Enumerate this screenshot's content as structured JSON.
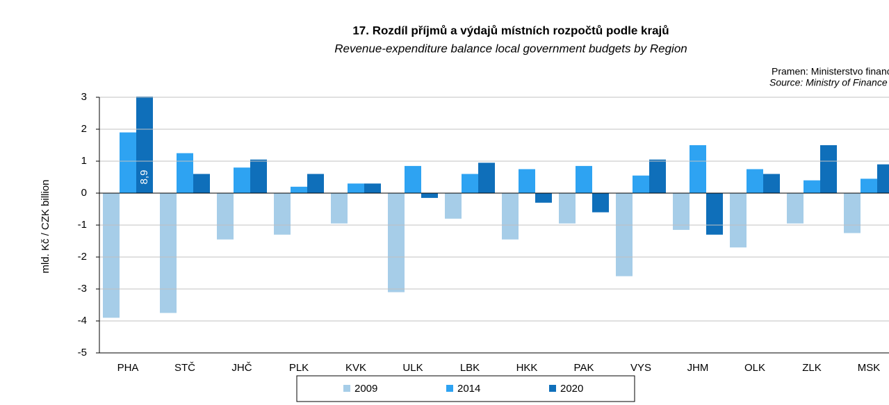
{
  "chart_data": {
    "type": "bar",
    "title": "17. Rozdíl příjmů a výdajů místních rozpočtů podle krajů",
    "subtitle": "Revenue-expenditure balance local government budgets by Region",
    "source_cz": "Pramen: Ministerstvo financí",
    "source_en": "Source: Ministry of Finance",
    "y_label": "mld. Kč / CZK billion",
    "categories": [
      "PHA",
      "STČ",
      "JHČ",
      "PLK",
      "KVK",
      "ULK",
      "LBK",
      "HKK",
      "PAK",
      "VYS",
      "JHM",
      "OLK",
      "ZLK",
      "MSK"
    ],
    "series": [
      {
        "name": "2009",
        "color": "#a6cde8",
        "values": [
          -3.9,
          -3.75,
          -1.45,
          -1.3,
          -0.95,
          -3.1,
          -0.8,
          -1.45,
          -0.95,
          -2.6,
          -1.15,
          -1.7,
          -0.95,
          -1.25
        ]
      },
      {
        "name": "2014",
        "color": "#2ea3f2",
        "values": [
          1.9,
          1.25,
          0.8,
          0.2,
          0.3,
          0.85,
          0.6,
          0.75,
          0.85,
          0.55,
          1.5,
          0.75,
          0.4,
          0.45
        ]
      },
      {
        "name": "2020",
        "color": "#0f6fba",
        "values": [
          8.9,
          0.6,
          1.05,
          0.6,
          0.3,
          -0.15,
          0.95,
          -0.3,
          -0.6,
          1.05,
          -1.3,
          0.6,
          1.5,
          0.9
        ],
        "value_labels": [
          "8,9",
          null,
          null,
          null,
          null,
          null,
          null,
          null,
          null,
          null,
          null,
          null,
          null,
          null
        ]
      }
    ],
    "ylim": [
      -5,
      3
    ],
    "yticks": [
      -5,
      -4,
      -3,
      -2,
      -1,
      0,
      1,
      2,
      3
    ],
    "grid": true
  }
}
